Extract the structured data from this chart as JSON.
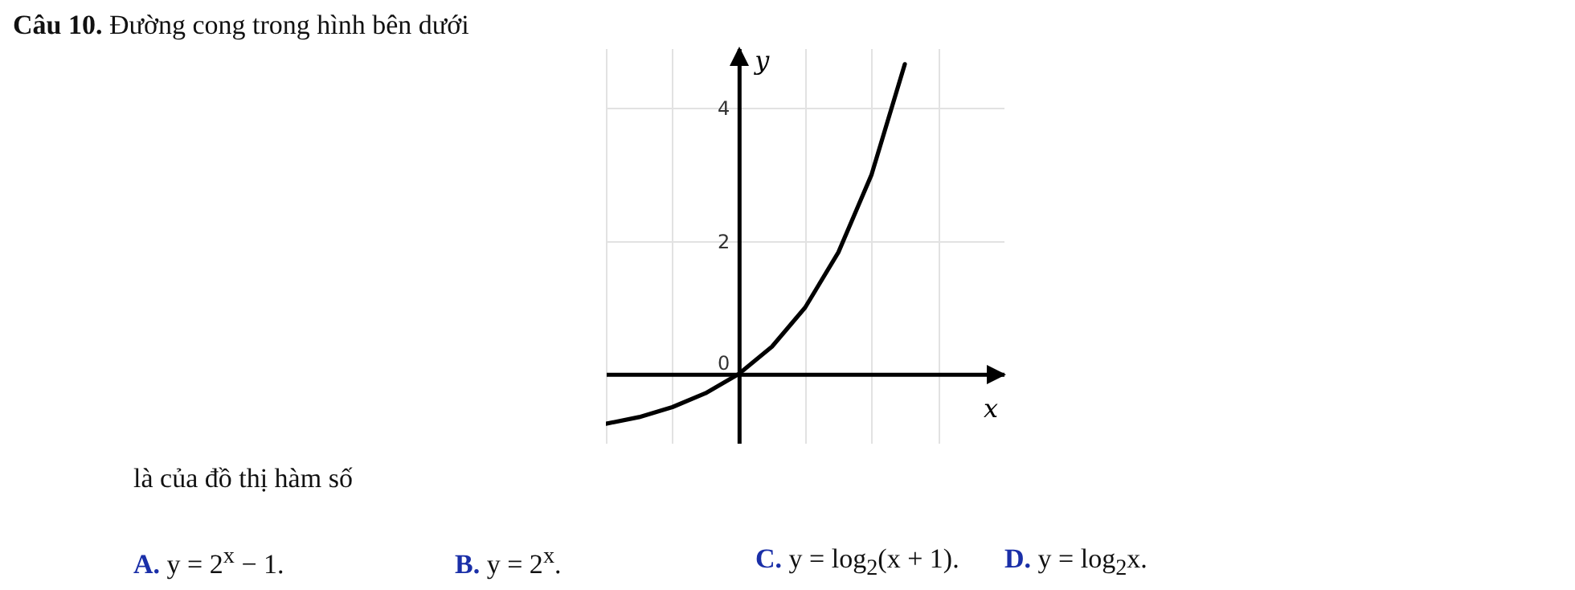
{
  "chart_data": {
    "type": "line",
    "title": "Câu 10. Đường cong trong hình bên dưới",
    "xlabel": "x",
    "ylabel": "y",
    "annotations": [
      "là của đồ thị hàm số",
      "A. y = 2$^{x}$ − 1.",
      "B. y = 2$^{x}$.",
      "C. y = log$_{2}$(x + 1).",
      "D. y = log$_{2}$x."
    ],
    "categories": [
      null,
      null,
      null,
      null,
      null,
      null,
      null,
      null,
      null,
      null,
      null,
      null,
      null
    ],
    "series": [
      {
        "color": "#000000",
        "values": [
          -0.75,
          -0.65,
          -0.5,
          -0.29,
          0,
          0.41,
          1,
          1.83,
          3,
          4.66,
          null,
          null,
          null
        ]
      }
    ],
    "ylim": [
      -1.05,
      4.9
    ],
    "yticks": [
      0,
      2,
      4
    ],
    "tick_labels": "y",
    "grid": true,
    "marker": "none",
    "line_style": "solid"
  }
}
